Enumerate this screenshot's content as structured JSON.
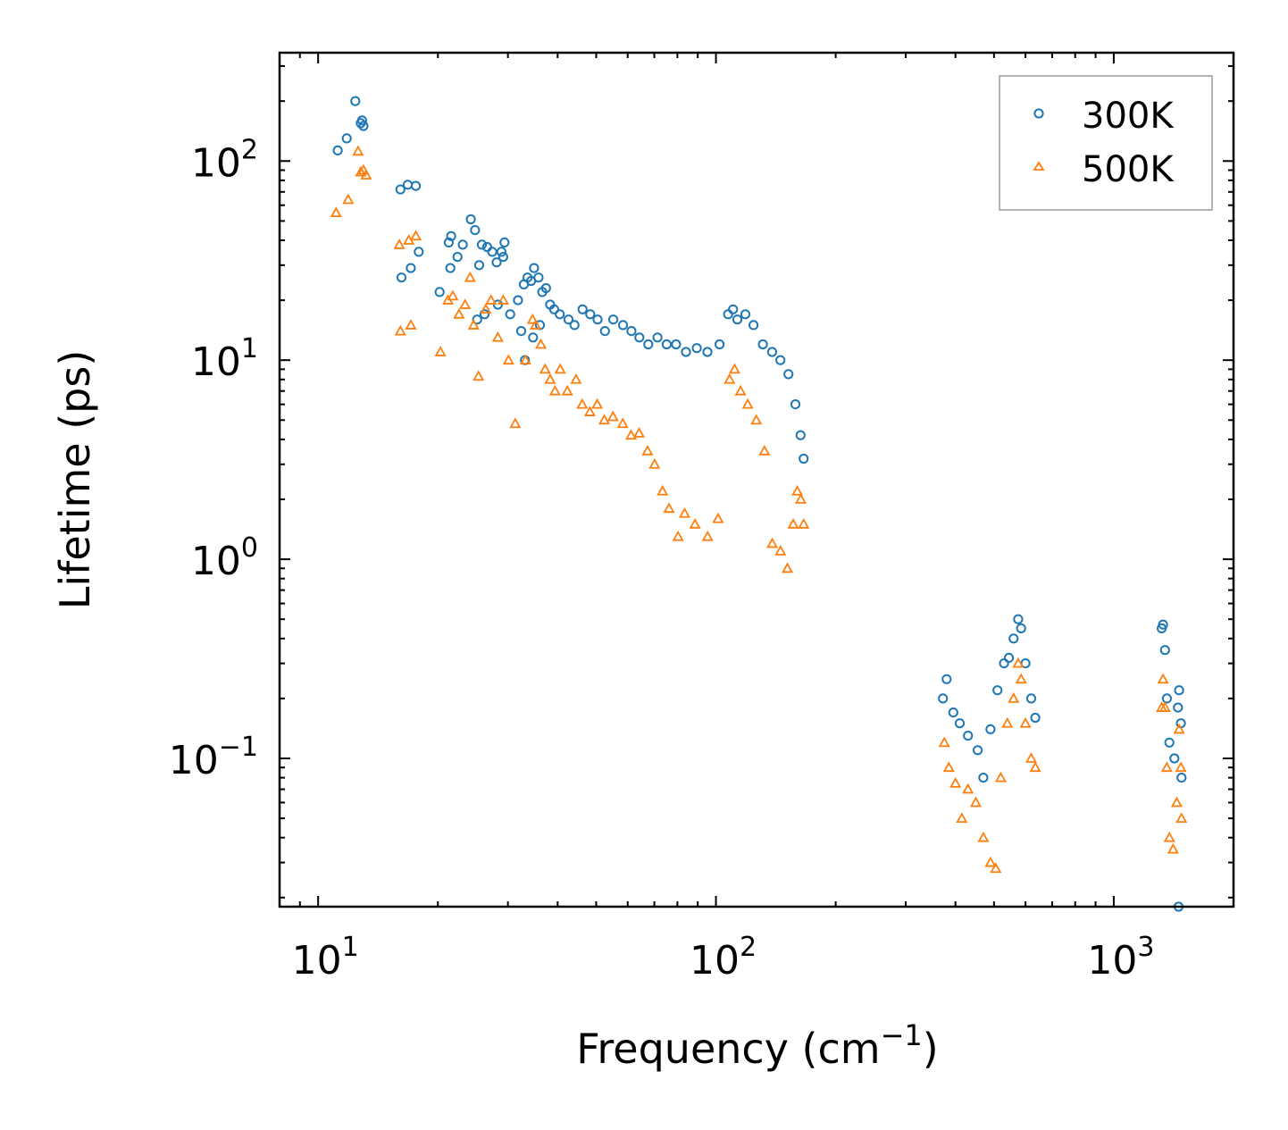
{
  "chart_data": {
    "type": "scatter",
    "title": "",
    "xlabel": "Frequency (cm",
    "xlabel_sup": "−1",
    "xlabel_tail": ")",
    "ylabel": "Lifetime (ps)",
    "xscale": "log",
    "yscale": "log",
    "xlim": [
      8,
      2000
    ],
    "ylim": [
      0.018,
      350
    ],
    "x_ticks": [
      {
        "base": "10",
        "exp": "1",
        "value": 10
      },
      {
        "base": "10",
        "exp": "2",
        "value": 100
      },
      {
        "base": "10",
        "exp": "3",
        "value": 1000
      }
    ],
    "y_ticks": [
      {
        "base": "10",
        "exp": "−1",
        "value": 0.1
      },
      {
        "base": "10",
        "exp": "0",
        "value": 1
      },
      {
        "base": "10",
        "exp": "1",
        "value": 10
      },
      {
        "base": "10",
        "exp": "2",
        "value": 100
      }
    ],
    "legend_position": "top-right",
    "series": [
      {
        "name": "300K",
        "color": "#1f77b4",
        "marker": "circle",
        "points": [
          [
            11.2,
            113
          ],
          [
            11.8,
            130
          ],
          [
            12.4,
            200
          ],
          [
            12.8,
            155
          ],
          [
            13.0,
            150
          ],
          [
            12.9,
            160
          ],
          [
            16.1,
            72
          ],
          [
            16.8,
            76
          ],
          [
            17.6,
            75
          ],
          [
            16.2,
            26
          ],
          [
            17.1,
            29
          ],
          [
            17.9,
            35
          ],
          [
            20.2,
            22
          ],
          [
            21.3,
            39
          ],
          [
            21.6,
            42
          ],
          [
            21.5,
            29
          ],
          [
            22.4,
            33
          ],
          [
            23.1,
            38
          ],
          [
            24.2,
            51
          ],
          [
            24.8,
            45
          ],
          [
            25.4,
            30
          ],
          [
            25.8,
            38
          ],
          [
            26.6,
            37
          ],
          [
            27.4,
            35
          ],
          [
            28.1,
            31
          ],
          [
            28.9,
            35
          ],
          [
            29.4,
            39
          ],
          [
            29.2,
            33
          ],
          [
            25.1,
            16
          ],
          [
            26.2,
            17
          ],
          [
            28.3,
            19
          ],
          [
            30.4,
            17
          ],
          [
            31.8,
            20
          ],
          [
            32.9,
            24
          ],
          [
            33.6,
            26
          ],
          [
            34.3,
            25
          ],
          [
            34.9,
            29
          ],
          [
            35.8,
            26
          ],
          [
            36.6,
            22
          ],
          [
            37.4,
            23
          ],
          [
            38.3,
            19
          ],
          [
            32.4,
            14
          ],
          [
            33.1,
            10
          ],
          [
            34.7,
            13
          ],
          [
            36.1,
            15
          ],
          [
            39.2,
            18
          ],
          [
            40.5,
            17
          ],
          [
            42.6,
            16
          ],
          [
            44.1,
            15
          ],
          [
            46.2,
            18
          ],
          [
            48.3,
            17
          ],
          [
            50.4,
            16
          ],
          [
            52.6,
            14
          ],
          [
            55.2,
            16
          ],
          [
            58.4,
            15
          ],
          [
            61.3,
            14
          ],
          [
            64.2,
            13
          ],
          [
            67.6,
            12
          ],
          [
            71.3,
            13
          ],
          [
            75.2,
            12
          ],
          [
            79.4,
            12
          ],
          [
            84.1,
            11
          ],
          [
            89.5,
            11.5
          ],
          [
            95.2,
            11
          ],
          [
            102.1,
            12
          ],
          [
            107.3,
            17
          ],
          [
            110.4,
            18
          ],
          [
            113.2,
            16
          ],
          [
            118.6,
            17
          ],
          [
            124.3,
            15
          ],
          [
            131.2,
            12
          ],
          [
            138.4,
            11
          ],
          [
            145.2,
            10
          ],
          [
            152.1,
            8.5
          ],
          [
            158.4,
            6
          ],
          [
            163.2,
            4.2
          ],
          [
            166.1,
            3.2
          ],
          [
            380,
            0.25
          ],
          [
            372,
            0.2
          ],
          [
            395,
            0.17
          ],
          [
            410,
            0.15
          ],
          [
            430,
            0.13
          ],
          [
            455,
            0.11
          ],
          [
            470,
            0.08
          ],
          [
            490,
            0.14
          ],
          [
            510,
            0.22
          ],
          [
            530,
            0.3
          ],
          [
            545,
            0.32
          ],
          [
            560,
            0.4
          ],
          [
            575,
            0.5
          ],
          [
            585,
            0.45
          ],
          [
            600,
            0.3
          ],
          [
            620,
            0.2
          ],
          [
            635,
            0.16
          ],
          [
            1320,
            0.45
          ],
          [
            1330,
            0.47
          ],
          [
            1345,
            0.35
          ],
          [
            1360,
            0.2
          ],
          [
            1380,
            0.12
          ],
          [
            1420,
            0.1
          ],
          [
            1450,
            0.18
          ],
          [
            1460,
            0.22
          ],
          [
            1475,
            0.15
          ],
          [
            1480,
            0.08
          ],
          [
            1455,
            0.018
          ]
        ]
      },
      {
        "name": "500K",
        "color": "#ff7f0e",
        "marker": "triangle",
        "points": [
          [
            11.1,
            55
          ],
          [
            11.9,
            64
          ],
          [
            12.6,
            112
          ],
          [
            12.8,
            88
          ],
          [
            13.0,
            90
          ],
          [
            13.2,
            85
          ],
          [
            16.0,
            38
          ],
          [
            16.9,
            40
          ],
          [
            17.6,
            42
          ],
          [
            16.1,
            14
          ],
          [
            17.1,
            15
          ],
          [
            20.3,
            11
          ],
          [
            21.2,
            20
          ],
          [
            21.8,
            21
          ],
          [
            22.6,
            17
          ],
          [
            23.4,
            19
          ],
          [
            24.1,
            26
          ],
          [
            24.6,
            15
          ],
          [
            25.3,
            8.3
          ],
          [
            26.4,
            18
          ],
          [
            27.2,
            20
          ],
          [
            28.3,
            13
          ],
          [
            29.2,
            20
          ],
          [
            30.1,
            10
          ],
          [
            31.3,
            4.8
          ],
          [
            33.2,
            10
          ],
          [
            34.6,
            16
          ],
          [
            35.2,
            15
          ],
          [
            36.3,
            12
          ],
          [
            37.2,
            9
          ],
          [
            38.3,
            8
          ],
          [
            39.4,
            7
          ],
          [
            40.6,
            9
          ],
          [
            42.3,
            7
          ],
          [
            44.5,
            8
          ],
          [
            46.1,
            6
          ],
          [
            48.2,
            5.5
          ],
          [
            50.3,
            6
          ],
          [
            52.4,
            5
          ],
          [
            55.1,
            5.2
          ],
          [
            58.3,
            4.8
          ],
          [
            61.2,
            4.2
          ],
          [
            64.1,
            4.3
          ],
          [
            67.3,
            3.5
          ],
          [
            70.1,
            3.0
          ],
          [
            73.4,
            2.2
          ],
          [
            76.2,
            1.8
          ],
          [
            80.3,
            1.3
          ],
          [
            83.4,
            1.7
          ],
          [
            88.6,
            1.5
          ],
          [
            95.3,
            1.3
          ],
          [
            101.2,
            1.6
          ],
          [
            108.2,
            8
          ],
          [
            111.4,
            9
          ],
          [
            115.3,
            7
          ],
          [
            120.2,
            6
          ],
          [
            126.3,
            5
          ],
          [
            132.4,
            3.5
          ],
          [
            138.5,
            1.2
          ],
          [
            145.3,
            1.1
          ],
          [
            151.2,
            0.9
          ],
          [
            156.4,
            1.5
          ],
          [
            160.1,
            2.2
          ],
          [
            163.4,
            2.0
          ],
          [
            166.1,
            1.5
          ],
          [
            375,
            0.12
          ],
          [
            385,
            0.09
          ],
          [
            400,
            0.075
          ],
          [
            415,
            0.05
          ],
          [
            430,
            0.07
          ],
          [
            450,
            0.06
          ],
          [
            470,
            0.04
          ],
          [
            490,
            0.03
          ],
          [
            505,
            0.028
          ],
          [
            520,
            0.08
          ],
          [
            540,
            0.15
          ],
          [
            560,
            0.2
          ],
          [
            575,
            0.3
          ],
          [
            585,
            0.25
          ],
          [
            600,
            0.15
          ],
          [
            620,
            0.1
          ],
          [
            635,
            0.09
          ],
          [
            1320,
            0.18
          ],
          [
            1330,
            0.25
          ],
          [
            1345,
            0.18
          ],
          [
            1360,
            0.09
          ],
          [
            1380,
            0.04
          ],
          [
            1410,
            0.035
          ],
          [
            1440,
            0.06
          ],
          [
            1460,
            0.14
          ],
          [
            1475,
            0.09
          ],
          [
            1480,
            0.05
          ]
        ]
      }
    ]
  }
}
